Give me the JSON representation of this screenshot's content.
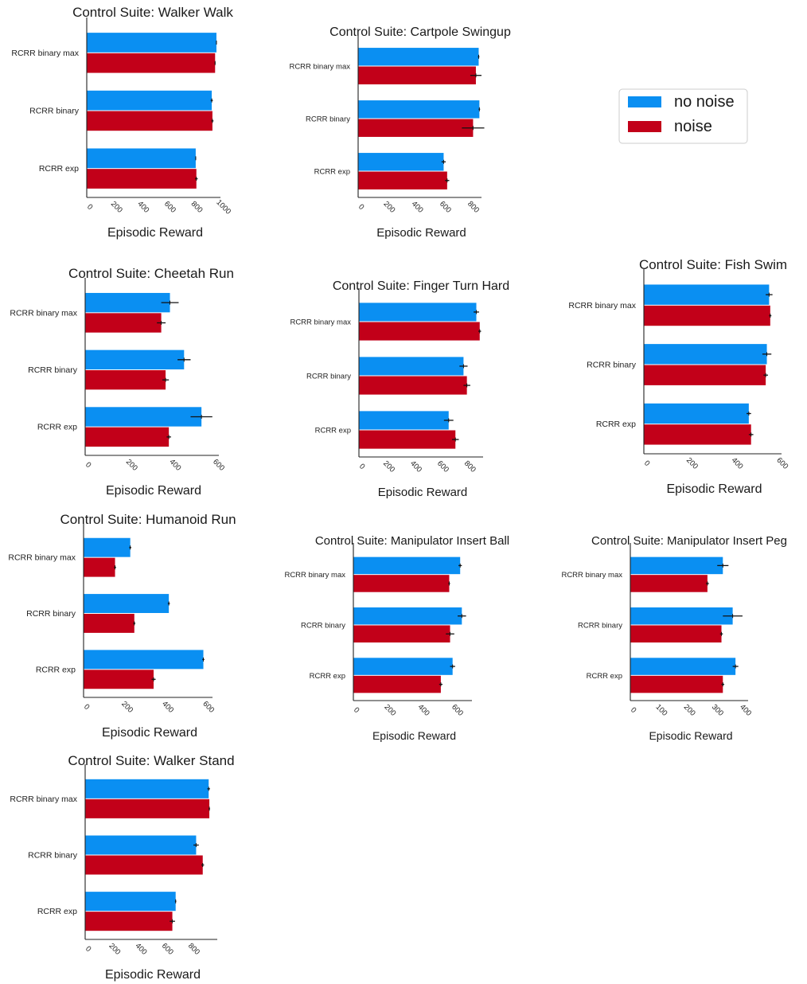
{
  "colors": {
    "no_noise": "#0a8ff2",
    "noise": "#c20019",
    "error_bar": "#111111",
    "axis": "#222222"
  },
  "legend": {
    "position": "top-right",
    "entries": [
      {
        "label": "no noise",
        "color": "#0a8ff2"
      },
      {
        "label": "noise",
        "color": "#c20019"
      }
    ]
  },
  "chart_data": [
    {
      "type": "bar",
      "orientation": "horizontal",
      "title": "Control Suite: Walker Walk",
      "xlabel": "Episodic Reward",
      "categories": [
        "RCRR binary max",
        "RCRR binary",
        "RCRR exp"
      ],
      "series": [
        {
          "name": "no noise",
          "values": [
            970,
            935,
            815
          ],
          "errors": [
            2,
            8,
            3
          ]
        },
        {
          "name": "noise",
          "values": [
            960,
            940,
            820
          ],
          "errors": [
            3,
            8,
            10
          ]
        }
      ],
      "xticks": [
        0,
        200,
        400,
        600,
        800,
        1000
      ],
      "xlim": [
        0,
        1000
      ],
      "grid": false
    },
    {
      "type": "bar",
      "orientation": "horizontal",
      "title": "Control Suite: Cartpole Swingup",
      "xlabel": "Episodic Reward",
      "categories": [
        "RCRR binary max",
        "RCRR binary",
        "RCRR exp"
      ],
      "series": [
        {
          "name": "no noise",
          "values": [
            860,
            865,
            610
          ],
          "errors": [
            5,
            5,
            15
          ]
        },
        {
          "name": "noise",
          "values": [
            840,
            820,
            635
          ],
          "errors": [
            40,
            80,
            15
          ]
        }
      ],
      "xticks": [
        0,
        200,
        400,
        600,
        800
      ],
      "xlim": [
        0,
        880
      ],
      "grid": false
    },
    {
      "type": "bar",
      "orientation": "horizontal",
      "title": "Control Suite: Cheetah Run",
      "xlabel": "Episodic Reward",
      "categories": [
        "RCRR binary max",
        "RCRR binary",
        "RCRR exp"
      ],
      "series": [
        {
          "name": "no noise",
          "values": [
            390,
            455,
            535
          ],
          "errors": [
            40,
            30,
            50
          ]
        },
        {
          "name": "noise",
          "values": [
            350,
            370,
            385
          ],
          "errors": [
            20,
            15,
            10
          ]
        }
      ],
      "xticks": [
        0,
        200,
        400,
        600
      ],
      "xlim": [
        0,
        615
      ],
      "grid": false
    },
    {
      "type": "bar",
      "orientation": "horizontal",
      "title": "Control Suite: Finger Turn Hard",
      "xlabel": "Episodic Reward",
      "categories": [
        "RCRR binary max",
        "RCRR binary",
        "RCRR exp"
      ],
      "series": [
        {
          "name": "no noise",
          "values": [
            870,
            775,
            665
          ],
          "errors": [
            20,
            30,
            35
          ]
        },
        {
          "name": "noise",
          "values": [
            895,
            800,
            715
          ],
          "errors": [
            10,
            25,
            25
          ]
        }
      ],
      "xticks": [
        0,
        200,
        400,
        600,
        800
      ],
      "xlim": [
        0,
        920
      ],
      "grid": false
    },
    {
      "type": "bar",
      "orientation": "horizontal",
      "title": "Control Suite: Fish Swim",
      "xlabel": "Episodic Reward",
      "categories": [
        "RCRR binary max",
        "RCRR binary",
        "RCRR exp"
      ],
      "series": [
        {
          "name": "no noise",
          "values": [
            555,
            545,
            465
          ],
          "errors": [
            15,
            20,
            10
          ]
        },
        {
          "name": "noise",
          "values": [
            560,
            540,
            475
          ],
          "errors": [
            5,
            10,
            10
          ]
        }
      ],
      "xticks": [
        0,
        200,
        400,
        600
      ],
      "xlim": [
        0,
        610
      ],
      "grid": false
    },
    {
      "type": "bar",
      "orientation": "horizontal",
      "title": "Control Suite: Humanoid Run",
      "xlabel": "Episodic Reward",
      "categories": [
        "RCRR binary max",
        "RCRR binary",
        "RCRR exp"
      ],
      "series": [
        {
          "name": "no noise",
          "values": [
            230,
            420,
            590
          ],
          "errors": [
            5,
            5,
            5
          ]
        },
        {
          "name": "noise",
          "values": [
            155,
            250,
            345
          ],
          "errors": [
            5,
            5,
            10
          ]
        }
      ],
      "xticks": [
        0,
        200,
        400,
        600
      ],
      "xlim": [
        0,
        635
      ],
      "grid": false
    },
    {
      "type": "bar",
      "orientation": "horizontal",
      "title": "Control Suite: Manipulator Insert Ball",
      "xlabel": "Episodic Reward",
      "categories": [
        "RCRR binary max",
        "RCRR binary",
        "RCRR exp"
      ],
      "series": [
        {
          "name": "no noise",
          "values": [
            635,
            645,
            590
          ],
          "errors": [
            10,
            25,
            15
          ]
        },
        {
          "name": "noise",
          "values": [
            570,
            575,
            520
          ],
          "errors": [
            5,
            25,
            10
          ]
        }
      ],
      "xticks": [
        0,
        200,
        400,
        600
      ],
      "xlim": [
        0,
        705
      ],
      "grid": false
    },
    {
      "type": "bar",
      "orientation": "horizontal",
      "title": "Control Suite: Manipulator Insert Peg",
      "xlabel": "Episodic Reward",
      "categories": [
        "RCRR binary max",
        "RCRR binary",
        "RCRR exp"
      ],
      "series": [
        {
          "name": "no noise",
          "values": [
            330,
            365,
            375
          ],
          "errors": [
            20,
            35,
            10
          ]
        },
        {
          "name": "noise",
          "values": [
            275,
            325,
            330
          ],
          "errors": [
            5,
            5,
            5
          ]
        }
      ],
      "xticks": [
        0,
        100,
        200,
        300,
        400
      ],
      "xlim": [
        0,
        420
      ],
      "grid": false
    },
    {
      "type": "bar",
      "orientation": "horizontal",
      "title": "Control Suite: Walker Stand",
      "xlabel": "Episodic Reward",
      "categories": [
        "RCRR binary max",
        "RCRR binary",
        "RCRR exp"
      ],
      "series": [
        {
          "name": "no noise",
          "values": [
            935,
            840,
            685
          ],
          "errors": [
            10,
            20,
            5
          ]
        },
        {
          "name": "noise",
          "values": [
            940,
            890,
            660
          ],
          "errors": [
            5,
            10,
            20
          ]
        }
      ],
      "xticks": [
        0,
        200,
        400,
        600,
        800
      ],
      "xlim": [
        0,
        1000
      ],
      "grid": false
    }
  ]
}
